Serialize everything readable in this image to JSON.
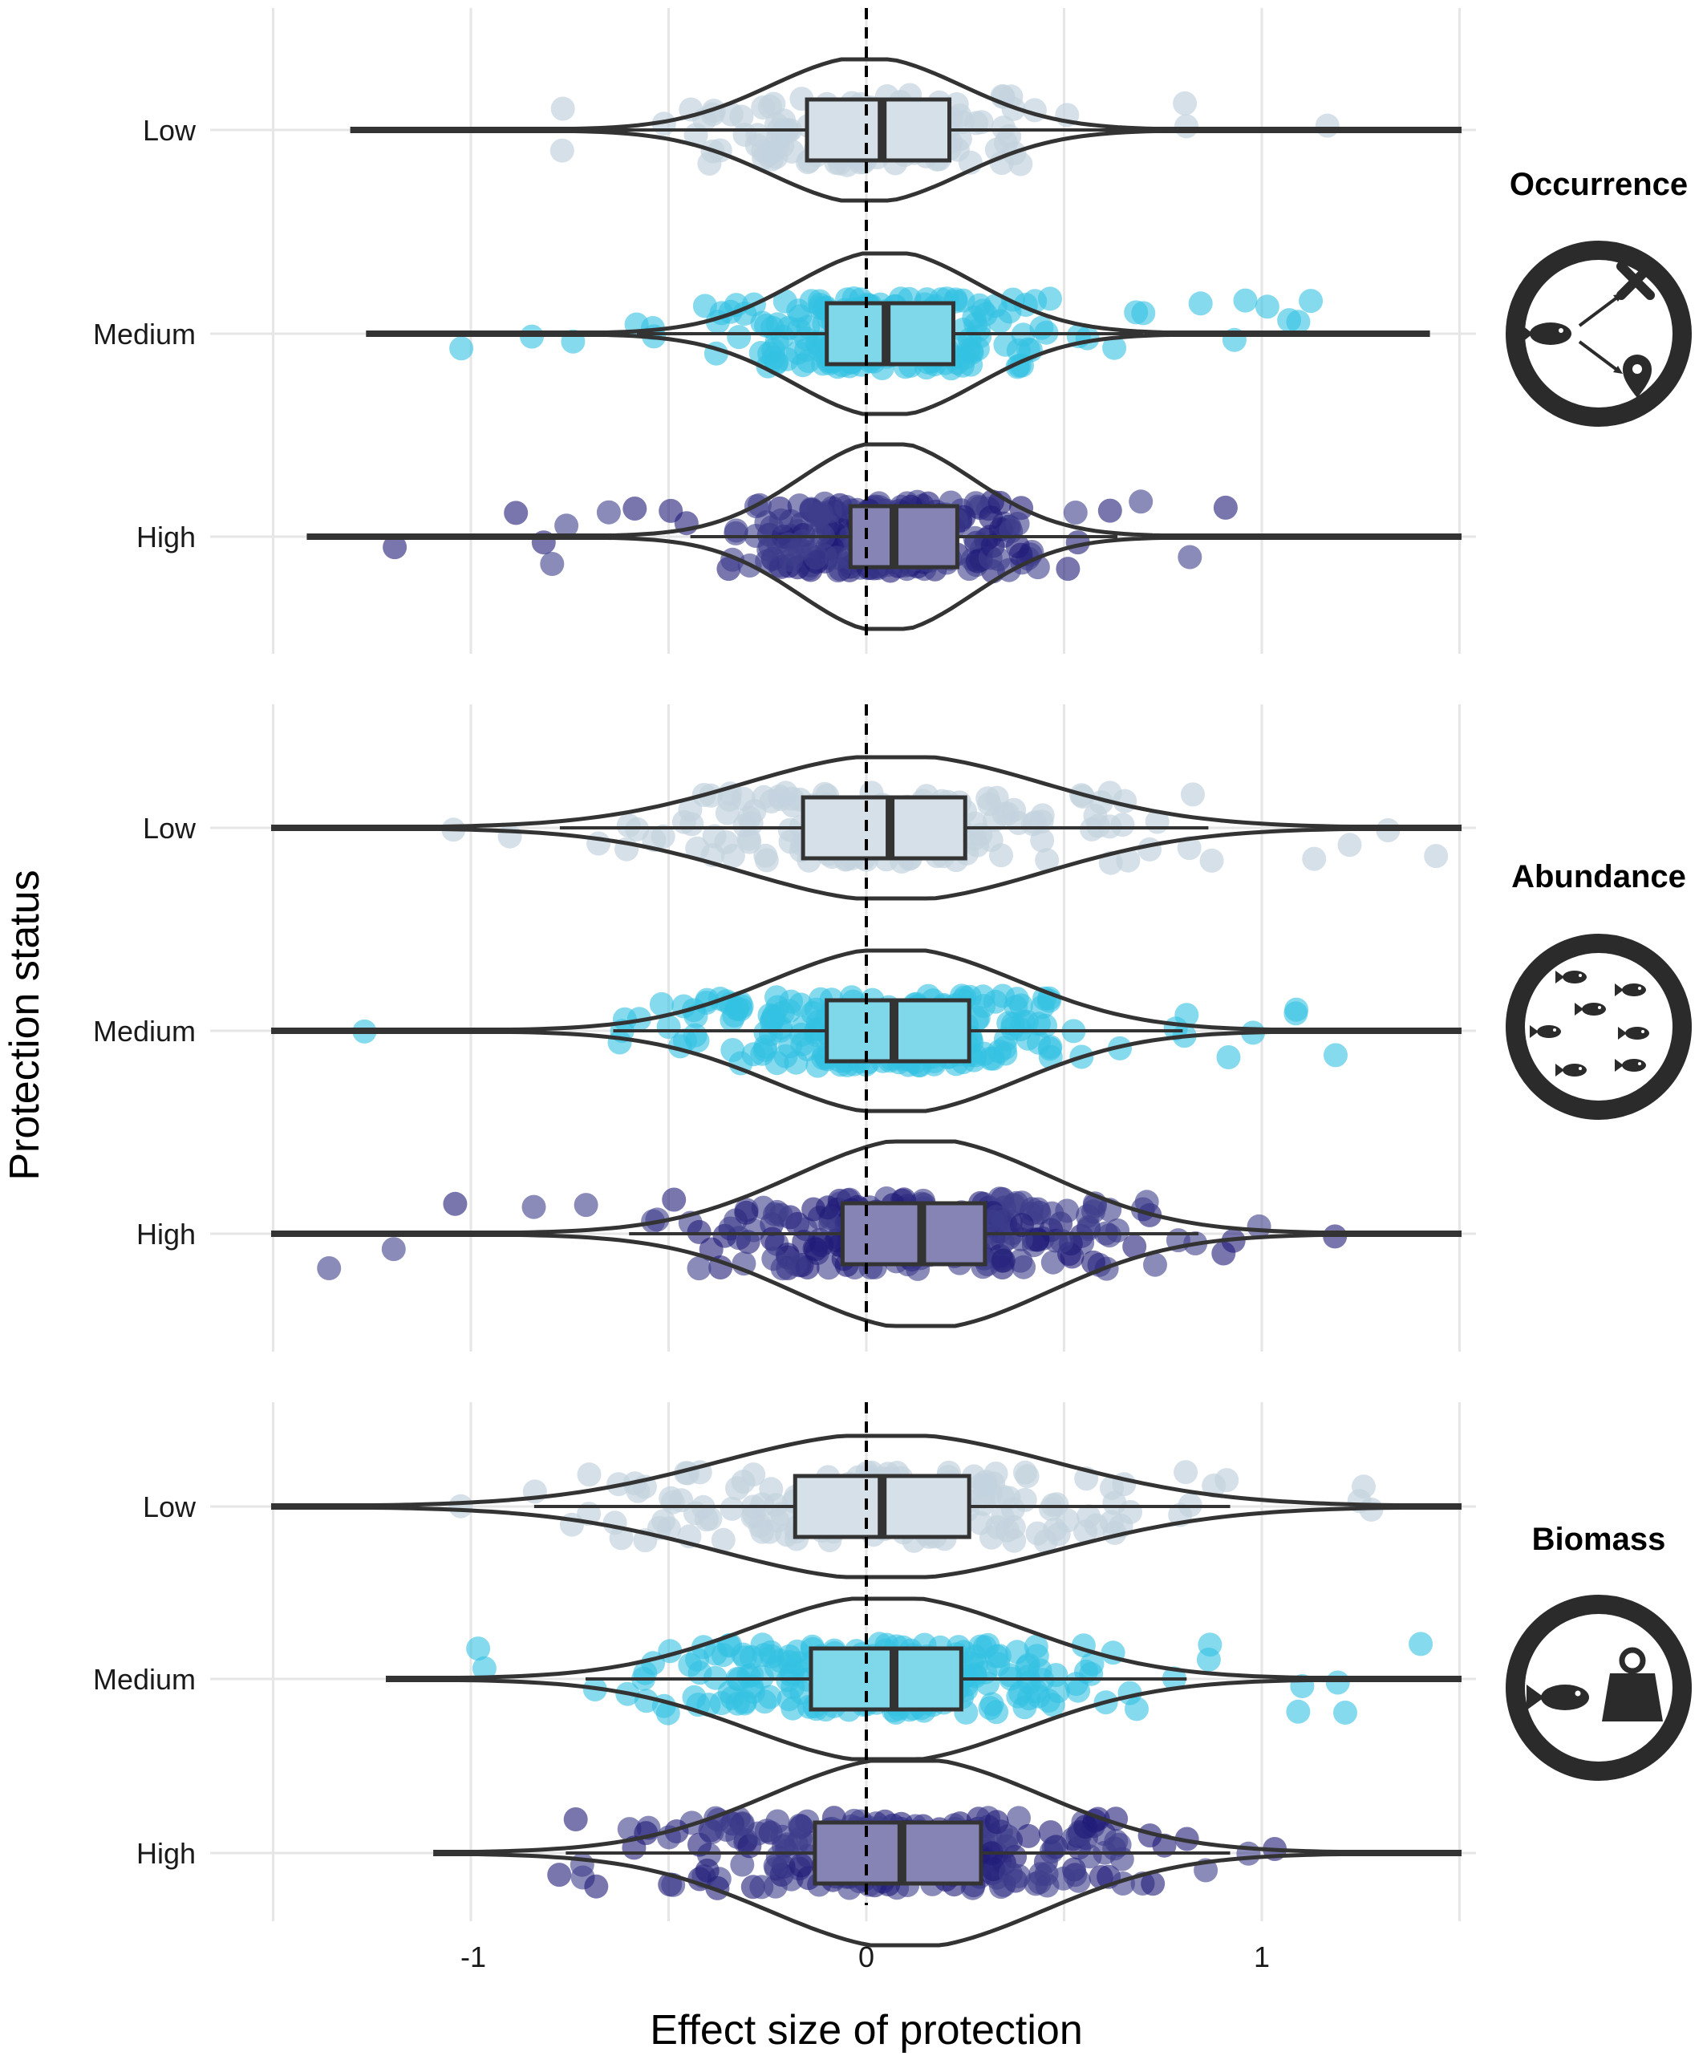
{
  "chart_data": {
    "type": "violin",
    "xlabel": "Effect size of protection",
    "ylabel": "Protection status",
    "xlim": [
      -1.5,
      1.5
    ],
    "x_ticks": [
      -1,
      0,
      1
    ],
    "x_tick_labels": [
      "-1",
      "0",
      "1"
    ],
    "reference_line": 0,
    "categories": [
      "Low",
      "Medium",
      "High"
    ],
    "colors": {
      "Low": "#c3d3de",
      "Medium": "#33c2e3",
      "High": "#3e3d8c",
      "High_dark": "#1f1a78"
    },
    "panels": [
      {
        "title": "Occurrence",
        "icon": "fish-arrows-cross-location-icon",
        "groups": [
          {
            "status": "Low",
            "min": -1.3,
            "q1": -0.15,
            "median": 0.04,
            "q3": 0.21,
            "max": 1.5,
            "points_range": [
              -1.1,
              1.35
            ],
            "peak": 0.0
          },
          {
            "status": "Medium",
            "min": -1.26,
            "q1": -0.1,
            "median": 0.05,
            "q3": 0.22,
            "max": 1.42,
            "points_range": [
              -1.05,
              1.25
            ],
            "peak": 0.05
          },
          {
            "status": "High",
            "min": -1.41,
            "q1": -0.04,
            "median": 0.07,
            "q3": 0.23,
            "max": 1.5,
            "points_range": [
              -1.2,
              1.38
            ],
            "peak": 0.05
          }
        ]
      },
      {
        "title": "Abundance",
        "icon": "fish-school-icon",
        "groups": [
          {
            "status": "Low",
            "min": -1.5,
            "q1": -0.16,
            "median": 0.06,
            "q3": 0.25,
            "max": 1.5,
            "points_range": [
              -1.3,
              1.48
            ],
            "peak": 0.07
          },
          {
            "status": "Medium",
            "min": -1.5,
            "q1": -0.1,
            "median": 0.07,
            "q3": 0.26,
            "max": 1.5,
            "points_range": [
              -1.45,
              1.27
            ],
            "peak": 0.07
          },
          {
            "status": "High",
            "min": -1.5,
            "q1": -0.06,
            "median": 0.14,
            "q3": 0.3,
            "max": 1.5,
            "points_range": [
              -1.39,
              1.27
            ],
            "peak": 0.14
          }
        ]
      },
      {
        "title": "Biomass",
        "icon": "fish-weight-icon",
        "groups": [
          {
            "status": "Low",
            "min": -1.5,
            "q1": -0.18,
            "median": 0.04,
            "q3": 0.26,
            "max": 1.5,
            "points_range": [
              -1.45,
              1.32
            ],
            "peak": 0.05
          },
          {
            "status": "Medium",
            "min": -1.21,
            "q1": -0.14,
            "median": 0.07,
            "q3": 0.24,
            "max": 1.5,
            "points_range": [
              -1.05,
              1.42
            ],
            "peak": 0.05
          },
          {
            "status": "High",
            "min": -1.09,
            "q1": -0.13,
            "median": 0.09,
            "q3": 0.29,
            "max": 1.5,
            "points_range": [
              -0.83,
              1.32
            ],
            "peak": 0.1
          }
        ]
      }
    ]
  }
}
